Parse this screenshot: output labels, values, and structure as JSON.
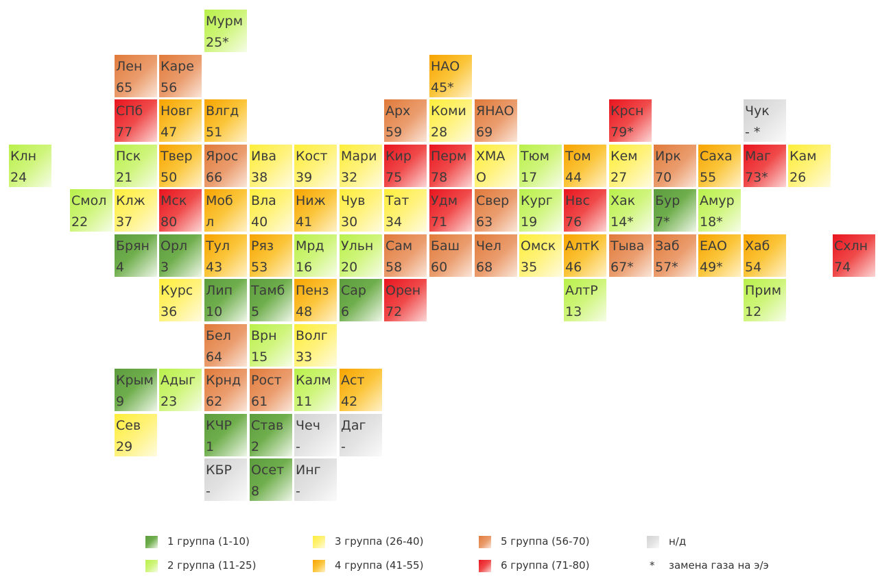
{
  "groups": {
    "1": {
      "color": "#6aa84f"
    },
    "2": {
      "color": "#c6f26a"
    },
    "3": {
      "color": "#fff35c"
    },
    "4": {
      "color": "#f7b114"
    },
    "5": {
      "color": "#e98046"
    },
    "6": {
      "color": "#ee2a2a"
    },
    "nd": {
      "color": "#d9d9d9"
    }
  },
  "regions": [
    {
      "name": "Мурм",
      "value": "25*",
      "group": "2"
    },
    {
      "name": "Лен",
      "value": "65",
      "group": "5"
    },
    {
      "name": "Каре",
      "value": "56",
      "group": "5"
    },
    {
      "name": "НАО",
      "value": "45*",
      "group": "4"
    },
    {
      "name": "СПб",
      "value": "77",
      "group": "6"
    },
    {
      "name": "Новг",
      "value": "47",
      "group": "4"
    },
    {
      "name": "Влгд",
      "value": "51",
      "group": "4"
    },
    {
      "name": "Арх",
      "value": "59",
      "group": "5"
    },
    {
      "name": "Коми",
      "value": "28",
      "group": "3"
    },
    {
      "name": "ЯНАО",
      "value": "69",
      "group": "5"
    },
    {
      "name": "Крсн",
      "value": "79*",
      "group": "6"
    },
    {
      "name": "Чук",
      "value": "- *",
      "group": "nd"
    },
    {
      "name": "Клн",
      "value": "24",
      "group": "2"
    },
    {
      "name": "Пск",
      "value": "21",
      "group": "2"
    },
    {
      "name": "Твер",
      "value": "50",
      "group": "4"
    },
    {
      "name": "Ярос",
      "value": "66",
      "group": "5"
    },
    {
      "name": "Ива",
      "value": "38",
      "group": "3"
    },
    {
      "name": "Кост",
      "value": "39",
      "group": "3"
    },
    {
      "name": "Мари",
      "value": "32",
      "group": "3"
    },
    {
      "name": "Кир",
      "value": "75",
      "group": "6"
    },
    {
      "name": "Перм",
      "value": "78",
      "group": "6"
    },
    {
      "name": "ХМА",
      "value": "О",
      "group": "3"
    },
    {
      "name": "Тюм",
      "value": "17",
      "group": "2"
    },
    {
      "name": "Том",
      "value": "44",
      "group": "4"
    },
    {
      "name": "Кем",
      "value": "27",
      "group": "3"
    },
    {
      "name": "Ирк",
      "value": "70",
      "group": "5"
    },
    {
      "name": "Саха",
      "value": "55",
      "group": "4"
    },
    {
      "name": "Маг",
      "value": "73*",
      "group": "6"
    },
    {
      "name": "Кам",
      "value": "26",
      "group": "3"
    },
    {
      "name": "Смол",
      "value": "22",
      "group": "2"
    },
    {
      "name": "Клж",
      "value": "37",
      "group": "3"
    },
    {
      "name": "Мск",
      "value": "80",
      "group": "6"
    },
    {
      "name": "Моб",
      "value": "л",
      "group": "4"
    },
    {
      "name": "Вла",
      "value": "40",
      "group": "3"
    },
    {
      "name": "Ниж",
      "value": "41",
      "group": "4"
    },
    {
      "name": "Чув",
      "value": "30",
      "group": "3"
    },
    {
      "name": "Тат",
      "value": "34",
      "group": "3"
    },
    {
      "name": "Удм",
      "value": "71",
      "group": "6"
    },
    {
      "name": "Свер",
      "value": "63",
      "group": "5"
    },
    {
      "name": "Кург",
      "value": "19",
      "group": "2"
    },
    {
      "name": "Нвс",
      "value": "76",
      "group": "6"
    },
    {
      "name": "Хак",
      "value": "14*",
      "group": "2"
    },
    {
      "name": "Бур",
      "value": "7*",
      "group": "1"
    },
    {
      "name": "Амур",
      "value": "18*",
      "group": "2"
    },
    {
      "name": "Брян",
      "value": "4",
      "group": "1"
    },
    {
      "name": "Орл",
      "value": "3",
      "group": "1"
    },
    {
      "name": "Тул",
      "value": "43",
      "group": "4"
    },
    {
      "name": "Ряз",
      "value": "53",
      "group": "4"
    },
    {
      "name": "Мрд",
      "value": "16",
      "group": "2"
    },
    {
      "name": "Ульн",
      "value": "20",
      "group": "2"
    },
    {
      "name": "Сам",
      "value": "58",
      "group": "5"
    },
    {
      "name": "Баш",
      "value": "60",
      "group": "5"
    },
    {
      "name": "Чел",
      "value": "68",
      "group": "5"
    },
    {
      "name": "Омск",
      "value": "35",
      "group": "3"
    },
    {
      "name": "АлтК",
      "value": "46",
      "group": "4"
    },
    {
      "name": "Тыва",
      "value": "67*",
      "group": "5"
    },
    {
      "name": "Заб",
      "value": "57*",
      "group": "5"
    },
    {
      "name": "ЕАО",
      "value": "49*",
      "group": "4"
    },
    {
      "name": "Хаб",
      "value": "54",
      "group": "4"
    },
    {
      "name": "Схлн",
      "value": "74",
      "group": "6"
    },
    {
      "name": "Курс",
      "value": "36",
      "group": "3"
    },
    {
      "name": "Лип",
      "value": "10",
      "group": "1"
    },
    {
      "name": "Тамб",
      "value": "5",
      "group": "1"
    },
    {
      "name": "Пенз",
      "value": "48",
      "group": "4"
    },
    {
      "name": "Сар",
      "value": "6",
      "group": "1"
    },
    {
      "name": "Орен",
      "value": "72",
      "group": "6"
    },
    {
      "name": "АлтР",
      "value": "13",
      "group": "2"
    },
    {
      "name": "Прим",
      "value": "12",
      "group": "2"
    },
    {
      "name": "Бел",
      "value": "64",
      "group": "5"
    },
    {
      "name": "Врн",
      "value": "15",
      "group": "2"
    },
    {
      "name": "Волг",
      "value": "33",
      "group": "3"
    },
    {
      "name": "Крым",
      "value": "9",
      "group": "1"
    },
    {
      "name": "Адыг",
      "value": "23",
      "group": "2"
    },
    {
      "name": "Крнд",
      "value": "62",
      "group": "5"
    },
    {
      "name": "Рост",
      "value": "61",
      "group": "5"
    },
    {
      "name": "Калм",
      "value": "11",
      "group": "2"
    },
    {
      "name": "Аст",
      "value": "42",
      "group": "4"
    },
    {
      "name": "Сев",
      "value": "29",
      "group": "3"
    },
    {
      "name": "КЧР",
      "value": "1",
      "group": "1"
    },
    {
      "name": "Став",
      "value": "2",
      "group": "1"
    },
    {
      "name": "Чеч",
      "value": "-",
      "group": "nd"
    },
    {
      "name": "Даг",
      "value": "-",
      "group": "nd"
    },
    {
      "name": "КБР",
      "value": "-",
      "group": "nd"
    },
    {
      "name": "Осет",
      "value": "8",
      "group": "1"
    },
    {
      "name": "Инг",
      "value": "-",
      "group": "nd"
    }
  ],
  "legend": [
    {
      "label": "1 группа (1-10)",
      "group": "1"
    },
    {
      "label": "2 группа (11-25)",
      "group": "2"
    },
    {
      "label": "3 группа (26-40)",
      "group": "3"
    },
    {
      "label": "4 группа (41-55)",
      "group": "4"
    },
    {
      "label": "5 группа (56-70)",
      "group": "5"
    },
    {
      "label": "6 группа (71-80)",
      "group": "6"
    },
    {
      "label": "н/д",
      "group": "nd"
    },
    {
      "label": "замена газа на э/э",
      "symbol": "*"
    }
  ]
}
